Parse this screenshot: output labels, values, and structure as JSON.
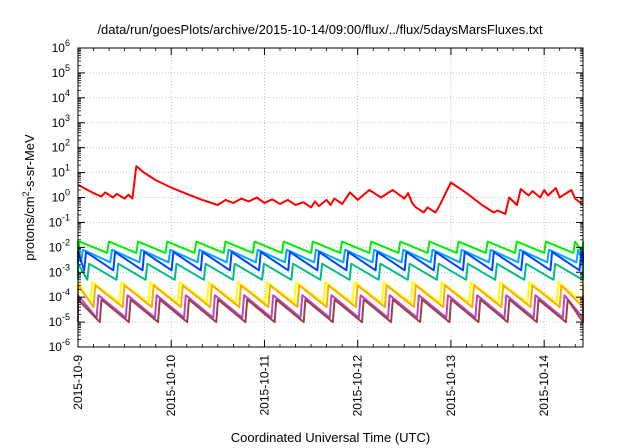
{
  "chart_data": {
    "type": "line",
    "title": "/data/run/goesPlots/archive/2015-10-14/09:00/flux/../flux/5daysMarsFluxes.txt",
    "xlabel": "Coordinated Universal Time (UTC)",
    "ylabel": "protons/cm2-s-sr-MeV",
    "ylabel_base": "protons/cm",
    "ylabel_sup": "2",
    "ylabel_tail": "-s-sr-MeV",
    "yscale": "log",
    "ylim": [
      1e-06,
      1000000.0
    ],
    "y_ticks": [
      {
        "base": "10",
        "exp": "-6"
      },
      {
        "base": "10",
        "exp": "-5"
      },
      {
        "base": "10",
        "exp": "-4"
      },
      {
        "base": "10",
        "exp": "-3"
      },
      {
        "base": "10",
        "exp": "-2"
      },
      {
        "base": "10",
        "exp": "-1"
      },
      {
        "base": "10",
        "exp": "0"
      },
      {
        "base": "10",
        "exp": "1"
      },
      {
        "base": "10",
        "exp": "2"
      },
      {
        "base": "10",
        "exp": "3"
      },
      {
        "base": "10",
        "exp": "4"
      },
      {
        "base": "10",
        "exp": "5"
      },
      {
        "base": "10",
        "exp": "6"
      }
    ],
    "xlim": [
      "2015-10-09",
      "2015-10-14 10:00"
    ],
    "x_ticks": [
      "2015-10-9",
      "2015-10-10",
      "2015-10-11",
      "2015-10-12",
      "2015-10-13",
      "2015-10-14"
    ],
    "grid": true,
    "series": [
      {
        "color": "#ff0000",
        "x": [
          "2015-10-09 00:00",
          "2015-10-09 02:00",
          "2015-10-09 04:00",
          "2015-10-09 06:00",
          "2015-10-09 07:00",
          "2015-10-09 09:00",
          "2015-10-09 10:00",
          "2015-10-09 12:00",
          "2015-10-09 13:00",
          "2015-10-09 14:00",
          "2015-10-09 15:00",
          "2015-10-09 17:00",
          "2015-10-09 20:00",
          "2015-10-10 00:00",
          "2015-10-10 04:00",
          "2015-10-10 08:00",
          "2015-10-10 12:00",
          "2015-10-10 14:00",
          "2015-10-10 16:00",
          "2015-10-10 18:00",
          "2015-10-10 20:00",
          "2015-10-10 22:00",
          "2015-10-11 00:00",
          "2015-10-11 02:00",
          "2015-10-11 04:00",
          "2015-10-11 06:00",
          "2015-10-11 08:00",
          "2015-10-11 10:00",
          "2015-10-11 12:00",
          "2015-10-11 13:00",
          "2015-10-11 14:00",
          "2015-10-11 16:00",
          "2015-10-11 17:00",
          "2015-10-11 18:00",
          "2015-10-11 20:00",
          "2015-10-11 22:00",
          "2015-10-12 00:00",
          "2015-10-12 03:00",
          "2015-10-12 06:00",
          "2015-10-12 09:00",
          "2015-10-12 12:00",
          "2015-10-12 13:00",
          "2015-10-12 14:00",
          "2015-10-12 15:00",
          "2015-10-12 17:00",
          "2015-10-12 18:00",
          "2015-10-12 20:00",
          "2015-10-12 21:00",
          "2015-10-13 00:00",
          "2015-10-13 04:00",
          "2015-10-13 08:00",
          "2015-10-13 11:00",
          "2015-10-13 12:00",
          "2015-10-13 14:00",
          "2015-10-13 15:00",
          "2015-10-13 17:00",
          "2015-10-13 18:00",
          "2015-10-13 20:00",
          "2015-10-13 21:00",
          "2015-10-13 23:00",
          "2015-10-14 00:00",
          "2015-10-14 01:00",
          "2015-10-14 03:00",
          "2015-10-14 04:00",
          "2015-10-14 07:00",
          "2015-10-14 08:00",
          "2015-10-14 10:00"
        ],
        "y": [
          3.2,
          2.2,
          1.5,
          1.1,
          1.6,
          1.0,
          1.4,
          0.9,
          1.3,
          0.9,
          18,
          10,
          5,
          2.5,
          1.4,
          0.8,
          0.5,
          0.8,
          0.6,
          0.9,
          0.7,
          1.0,
          0.6,
          0.85,
          0.55,
          0.8,
          0.5,
          0.65,
          0.4,
          0.7,
          0.45,
          0.8,
          0.5,
          0.9,
          0.55,
          1.6,
          0.8,
          2.0,
          1.0,
          2.0,
          0.9,
          1.5,
          0.6,
          0.4,
          0.25,
          0.4,
          0.25,
          0.45,
          4.0,
          1.5,
          0.5,
          0.25,
          0.3,
          0.22,
          1.0,
          0.5,
          2.2,
          1.2,
          1.8,
          1.0,
          2.0,
          1.2,
          2.4,
          1.0,
          2.0,
          0.9,
          0.5
        ]
      },
      {
        "color": "#00ee00",
        "pattern": "sawtooth",
        "peak": 0.017,
        "trough": 0.006,
        "period_hours": 7.5,
        "phase_hours": 0.0
      },
      {
        "color": "#00aaff",
        "pattern": "sawtooth",
        "peak": 0.008,
        "trough": 0.0025,
        "period_hours": 7.5,
        "phase_hours": 0.8
      },
      {
        "color": "#0044ff",
        "pattern": "sawtooth",
        "peak": 0.0065,
        "trough": 0.0012,
        "period_hours": 7.5,
        "phase_hours": 1.6
      },
      {
        "color": "#00bb88",
        "pattern": "sawtooth",
        "peak": 0.0022,
        "trough": 0.0005,
        "period_hours": 7.5,
        "phase_hours": 2.4
      },
      {
        "color": "#ffff00",
        "pattern": "sawtooth",
        "peak": 0.0004,
        "trough": 6e-05,
        "period_hours": 7.5,
        "phase_hours": 3.2
      },
      {
        "color": "#ffaa00",
        "pattern": "sawtooth",
        "peak": 0.0003,
        "trough": 4e-05,
        "period_hours": 7.5,
        "phase_hours": 4.0
      },
      {
        "color": "#bb44cc",
        "pattern": "sawtooth",
        "peak": 0.00012,
        "trough": 1.5e-05,
        "period_hours": 7.5,
        "phase_hours": 4.8
      },
      {
        "color": "#994444",
        "pattern": "sawtooth",
        "peak": 8e-05,
        "trough": 1e-05,
        "period_hours": 7.5,
        "phase_hours": 5.6
      }
    ]
  }
}
